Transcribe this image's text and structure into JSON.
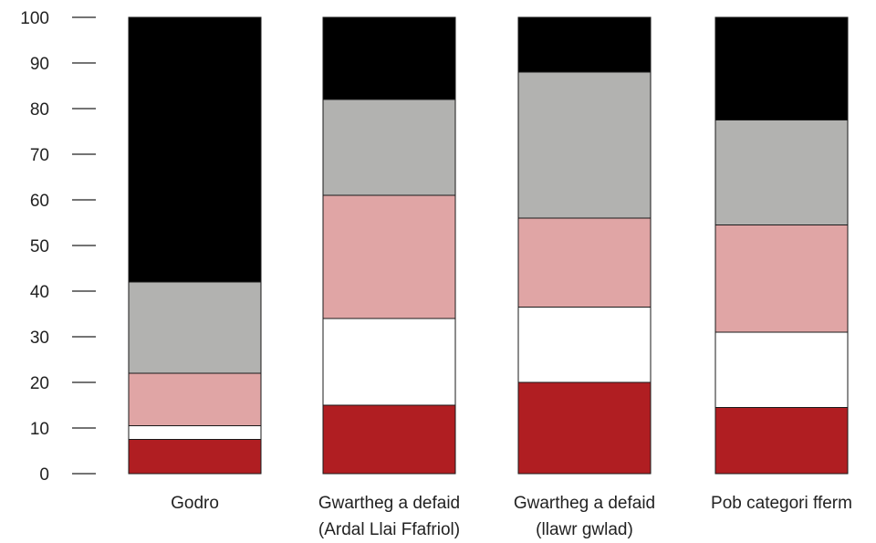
{
  "chart_data": {
    "type": "bar",
    "stacked": true,
    "title": "",
    "xlabel": "",
    "ylabel": "",
    "ylim": [
      0,
      100
    ],
    "yticks": [
      0,
      10,
      20,
      30,
      40,
      50,
      60,
      70,
      80,
      90,
      100
    ],
    "grid": false,
    "legend": "none",
    "categories": [
      [
        "Godro"
      ],
      [
        "Gwartheg a defaid",
        "(Ardal Llai Ffafriol)"
      ],
      [
        "Gwartheg a defaid",
        "(llawr gwlad)"
      ],
      [
        "Pob categori fferm"
      ]
    ],
    "series": [
      {
        "color": "#b01e22",
        "values": [
          7.5,
          15,
          20,
          14.5
        ]
      },
      {
        "color": "#ffffff",
        "values": [
          3,
          19,
          16.5,
          16.5
        ]
      },
      {
        "color": "#e0a5a5",
        "values": [
          11.5,
          27,
          19.5,
          23.5
        ]
      },
      {
        "color": "#b2b2b0",
        "values": [
          20,
          21,
          32,
          23
        ]
      },
      {
        "color": "#000000",
        "values": [
          58,
          18,
          12,
          22.5
        ]
      }
    ]
  }
}
